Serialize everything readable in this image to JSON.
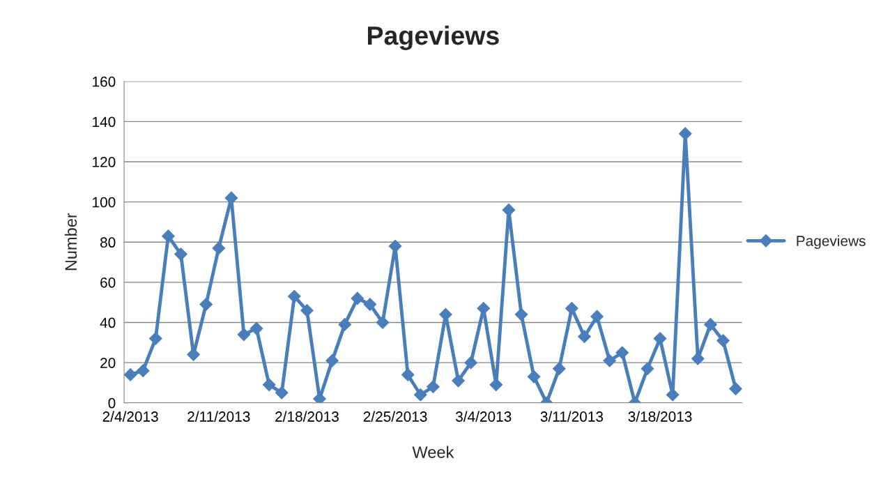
{
  "chart_data": {
    "type": "line",
    "title": "Pageviews",
    "xlabel": "Week",
    "ylabel": "Number",
    "x": [
      "2013-02-04T12:00",
      "2013-02-05T12:00",
      "2013-02-06T12:00",
      "2013-02-07T12:00",
      "2013-02-08T12:00",
      "2013-02-09T12:00",
      "2013-02-10T12:00",
      "2013-02-11T12:00",
      "2013-02-12T12:00",
      "2013-02-13T12:00",
      "2013-02-14T12:00",
      "2013-02-15T12:00",
      "2013-02-16T12:00",
      "2013-02-17T12:00",
      "2013-02-18T12:00",
      "2013-02-19T12:00",
      "2013-02-20T12:00",
      "2013-02-21T12:00",
      "2013-02-22T12:00",
      "2013-02-23T12:00",
      "2013-02-24T12:00",
      "2013-02-25T12:00",
      "2013-02-26T12:00",
      "2013-02-27T12:00",
      "2013-02-28T12:00",
      "2013-03-01T12:00",
      "2013-03-02T12:00",
      "2013-03-03T12:00",
      "2013-03-04T12:00",
      "2013-03-05T12:00",
      "2013-03-06T12:00",
      "2013-03-07T12:00",
      "2013-03-08T12:00",
      "2013-03-09T12:00",
      "2013-03-10T12:00",
      "2013-03-11T12:00",
      "2013-03-12T12:00",
      "2013-03-13T12:00",
      "2013-03-14T12:00",
      "2013-03-15T12:00",
      "2013-03-16T12:00",
      "2013-03-17T12:00",
      "2013-03-18T12:00",
      "2013-03-19T12:00",
      "2013-03-20T12:00",
      "2013-03-21T12:00",
      "2013-03-22T12:00",
      "2013-03-23T12:00",
      "2013-03-24T12:00"
    ],
    "series": [
      {
        "name": "Pageviews",
        "color": "#4a7ebb",
        "values": [
          14,
          16,
          32,
          83,
          74,
          24,
          49,
          77,
          102,
          34,
          37,
          9,
          5,
          53,
          46,
          2,
          21,
          39,
          52,
          49,
          40,
          78,
          14,
          4,
          8,
          44,
          11,
          20,
          47,
          9,
          96,
          44,
          13,
          0,
          17,
          47,
          33,
          43,
          21,
          25,
          0,
          17,
          32,
          4,
          134,
          22,
          39,
          31,
          7
        ]
      }
    ],
    "xlim": [
      "2013-02-04",
      "2013-03-25"
    ],
    "xticks": [
      {
        "value": "2013-02-04T12:00",
        "label": "2/4/2013"
      },
      {
        "value": "2013-02-11T12:00",
        "label": "2/11/2013"
      },
      {
        "value": "2013-02-18T12:00",
        "label": "2/18/2013"
      },
      {
        "value": "2013-02-25T12:00",
        "label": "2/25/2013"
      },
      {
        "value": "2013-03-04T12:00",
        "label": "3/4/2013"
      },
      {
        "value": "2013-03-11T12:00",
        "label": "3/11/2013"
      },
      {
        "value": "2013-03-18T12:00",
        "label": "3/18/2013"
      }
    ],
    "ylim": [
      0,
      160
    ],
    "yticks": [
      0,
      20,
      40,
      60,
      80,
      100,
      120,
      140,
      160
    ],
    "grid": "y",
    "legend": "right",
    "marker": "diamond",
    "line_style": "solid"
  }
}
